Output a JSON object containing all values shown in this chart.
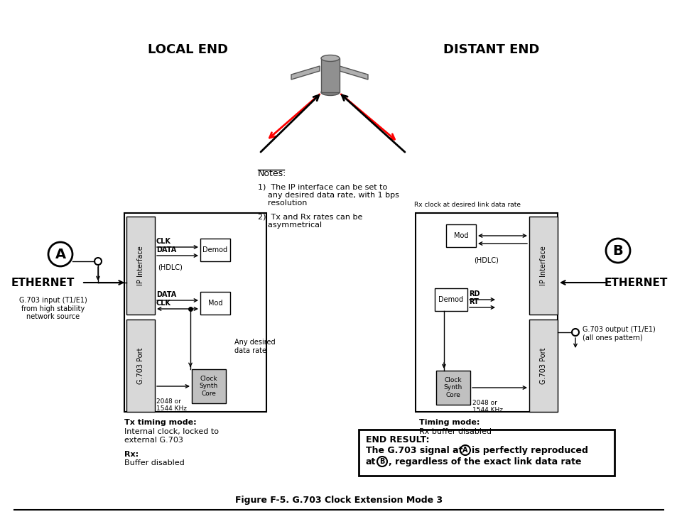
{
  "title": "Figure F-5. G.703 Clock Extension Mode 3",
  "bg_color": "#ffffff",
  "local_end_title": "LOCAL END",
  "distant_end_title": "DISTANT END",
  "ethernet_left": "ETHERNET",
  "ethernet_right": "ETHERNET",
  "notes_title": "Notes:",
  "note1": "1)  The IP interface can be set to\n    any desired data rate, with 1 bps\n    resolution",
  "note2": "2)  Tx and Rx rates can be\n    asymmetrical",
  "tx_timing_bold": "Tx timing mode:",
  "tx_timing_rest": "\nInternal clock, locked to\nexternal G.703",
  "rx_bold": "Rx:",
  "rx_rest": "\nBuffer disabled",
  "timing_bold": "Timing mode:",
  "timing_rest": "\nRx buffer disabled",
  "g703_input": "G.703 input (T1/E1)\nfrom high stability\nnetwork source",
  "g703_output": "G.703 output (T1/E1)\n(all ones pattern)",
  "any_desired": "Any desired\ndata rate",
  "rx_clock_label": "Rx clock at desired link data rate",
  "freq_local": "2048 or\n1544 KHz",
  "freq_distant": "2048 or\n1544 KHz",
  "end_result_bold": "END RESULT:",
  "end_result_line1a": "The G.703 signal at",
  "end_result_line1b": "is perfectly reproduced",
  "end_result_line2a": "at",
  "end_result_line2b": ", regardless of the exact link data rate"
}
